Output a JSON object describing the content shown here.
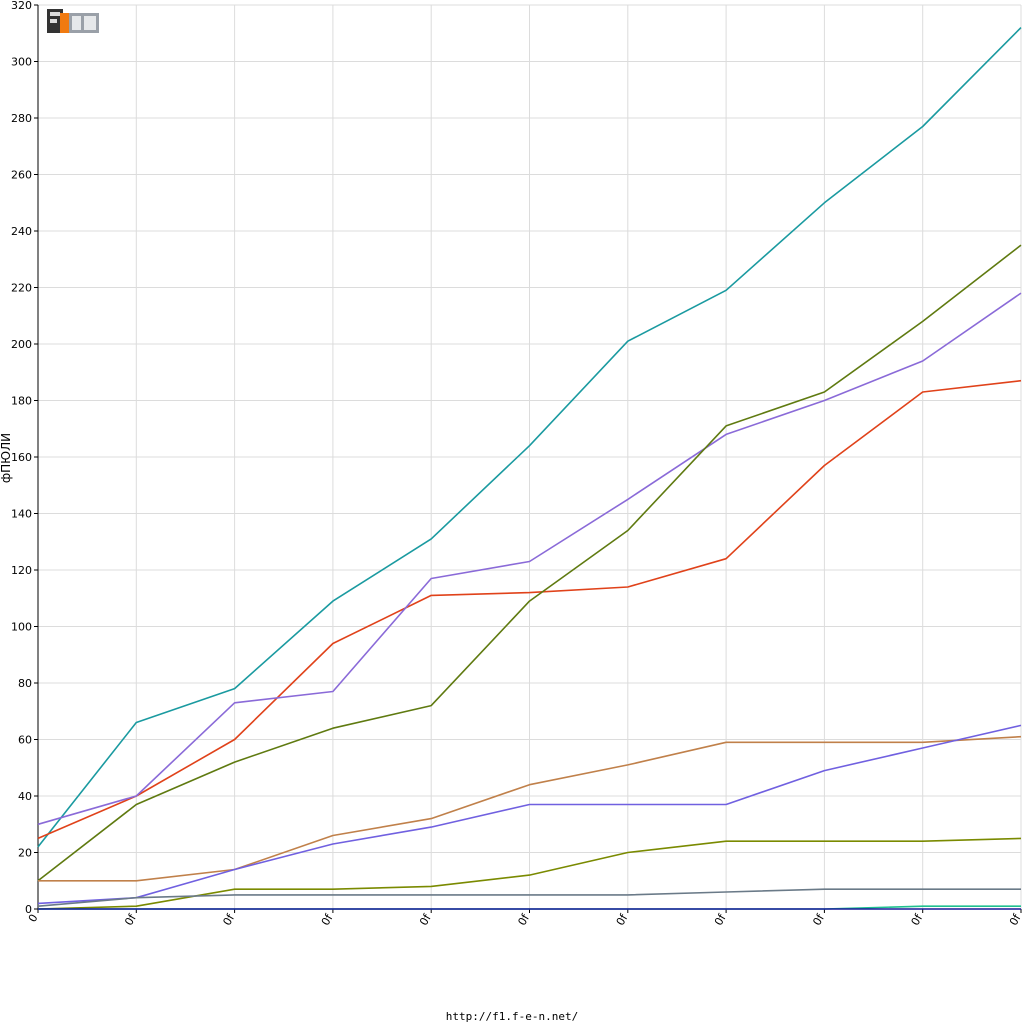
{
  "footer": {
    "url": "http://f1.f-e-n.net/"
  },
  "logo": {
    "alt": "F1FEN logo"
  },
  "chart_data": {
    "type": "line",
    "title": "",
    "xlabel": "",
    "ylabel": "фПЮЛИ",
    "ylim": [
      0,
      320
    ],
    "yticks": [
      0,
      20,
      40,
      60,
      80,
      100,
      120,
      140,
      160,
      180,
      200,
      220,
      240,
      260,
      280,
      300,
      320
    ],
    "x_ticklabels": [
      "0",
      "0f",
      "0f",
      "0f",
      "0f",
      "0f",
      "0f",
      "0f",
      "0f",
      "0f",
      "0f"
    ],
    "grid": true,
    "legend": "none",
    "series": [
      {
        "color": "#1a9aa0",
        "values": [
          22,
          66,
          78,
          109,
          131,
          164,
          201,
          219,
          250,
          277,
          312
        ]
      },
      {
        "color": "#e0421a",
        "values": [
          25,
          40,
          60,
          94,
          111,
          112,
          114,
          124,
          157,
          183,
          187
        ]
      },
      {
        "color": "#8a6ad8",
        "values": [
          30,
          40,
          73,
          77,
          117,
          123,
          145,
          168,
          180,
          194,
          218
        ]
      },
      {
        "color": "#5f7a10",
        "values": [
          10,
          37,
          52,
          64,
          72,
          109,
          134,
          171,
          183,
          208,
          235
        ]
      },
      {
        "color": "#c0804a",
        "values": [
          10,
          10,
          14,
          26,
          32,
          44,
          51,
          59,
          59,
          59,
          61
        ]
      },
      {
        "color": "#7060e0",
        "values": [
          2,
          4,
          14,
          23,
          29,
          37,
          37,
          37,
          49,
          57,
          65
        ]
      },
      {
        "color": "#7a8a00",
        "values": [
          0,
          1,
          7,
          7,
          8,
          12,
          20,
          24,
          24,
          24,
          25
        ]
      },
      {
        "color": "#6a7a88",
        "values": [
          1,
          4,
          5,
          5,
          5,
          5,
          5,
          6,
          7,
          7,
          7
        ]
      },
      {
        "color": "#20c090",
        "values": [
          0,
          0,
          0,
          0,
          0,
          0,
          0,
          0,
          0,
          1,
          1
        ]
      },
      {
        "color": "#1a1a9a",
        "values": [
          0,
          0,
          0,
          0,
          0,
          0,
          0,
          0,
          0,
          0,
          0
        ]
      }
    ]
  }
}
